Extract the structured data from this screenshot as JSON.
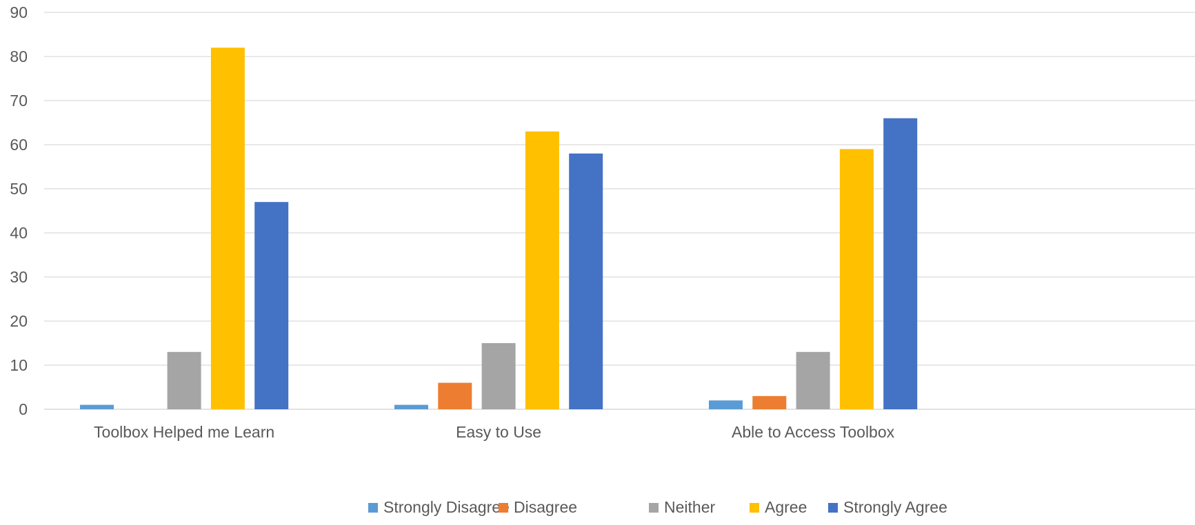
{
  "chart_data": {
    "type": "bar",
    "title": "",
    "xlabel": "",
    "ylabel": "",
    "categories": [
      "Toolbox Helped me Learn",
      "Easy to Use",
      "Able to Access Toolbox"
    ],
    "series": [
      {
        "name": "Strongly Disagree",
        "color": "#5B9BD5",
        "values": [
          1,
          1,
          2
        ]
      },
      {
        "name": "Disagree",
        "color": "#ED7D31",
        "values": [
          0,
          6,
          3
        ]
      },
      {
        "name": "Neither",
        "color": "#A5A5A5",
        "values": [
          13,
          15,
          13
        ]
      },
      {
        "name": "Agree",
        "color": "#FFC000",
        "values": [
          82,
          63,
          59
        ]
      },
      {
        "name": "Strongly Agree",
        "color": "#4472C4",
        "values": [
          47,
          58,
          66
        ]
      }
    ],
    "ylim": [
      0,
      90
    ],
    "yticks": [
      0,
      10,
      20,
      30,
      40,
      50,
      60,
      70,
      80,
      90
    ],
    "grid": true,
    "legend_position": "bottom"
  }
}
